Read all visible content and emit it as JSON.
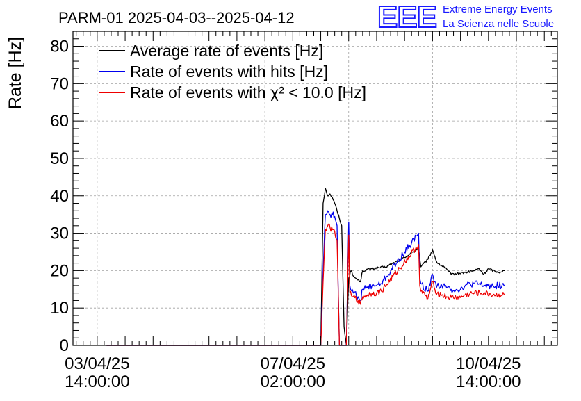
{
  "chart_data": {
    "type": "line",
    "title": "PARM-01 2025-04-03--2025-04-12",
    "ylabel": "Rate [Hz]",
    "xlabel": "",
    "ylim": [
      0,
      84
    ],
    "y_ticks": [
      0,
      10,
      20,
      30,
      40,
      50,
      60,
      70,
      80
    ],
    "xlim_hours_from_start": [
      -10.4,
      197.6
    ],
    "x_ticks": [
      {
        "date": "03/04/25",
        "time": "14:00:00",
        "hour": 0
      },
      {
        "date": "07/04/25",
        "time": "02:00:00",
        "hour": 84
      },
      {
        "date": "10/04/25",
        "time": "14:00:00",
        "hour": 168
      }
    ],
    "grid": true,
    "legend_position": "top-left",
    "logo": {
      "mark": "EEE",
      "line1": "Extreme Energy Events",
      "line2": "La Scienza nelle Scuole",
      "color": "#1a1aff"
    },
    "series": [
      {
        "name": "Average rate of events [Hz]",
        "color": "#000000",
        "points": [
          [
            4,
            0
          ],
          [
            92,
            0
          ],
          [
            96,
            0
          ],
          [
            97,
            38
          ],
          [
            98,
            42
          ],
          [
            99,
            40
          ],
          [
            100,
            40.5
          ],
          [
            101,
            39.5
          ],
          [
            102,
            38
          ],
          [
            103,
            36
          ],
          [
            105,
            32
          ],
          [
            106,
            5
          ],
          [
            107,
            0
          ],
          [
            108,
            18
          ],
          [
            109,
            20
          ],
          [
            110,
            18.5
          ],
          [
            112,
            17.5
          ],
          [
            113,
            17
          ],
          [
            114,
            20
          ],
          [
            118,
            20.5
          ],
          [
            124,
            21
          ],
          [
            132,
            23.5
          ],
          [
            138,
            26
          ],
          [
            139,
            21
          ],
          [
            142,
            23
          ],
          [
            144,
            25.5
          ],
          [
            146,
            22
          ],
          [
            149,
            21
          ],
          [
            152,
            19
          ],
          [
            158,
            19.5
          ],
          [
            162,
            20
          ],
          [
            164,
            20.5
          ],
          [
            166,
            19
          ],
          [
            168,
            20.5
          ],
          [
            172,
            19.5
          ],
          [
            175,
            20
          ]
        ],
        "noise": 0.3
      },
      {
        "name": "Rate of events with hits [Hz]",
        "color": "#0000ee",
        "points": [
          [
            4,
            0
          ],
          [
            95,
            0
          ],
          [
            96,
            0
          ],
          [
            97,
            20
          ],
          [
            98,
            35
          ],
          [
            99,
            36
          ],
          [
            100,
            35
          ],
          [
            101,
            35
          ],
          [
            102,
            34.5
          ],
          [
            103,
            32
          ],
          [
            104,
            0
          ],
          [
            105,
            0
          ],
          [
            106,
            0
          ],
          [
            107,
            0
          ],
          [
            108,
            33
          ],
          [
            108.5,
            16
          ],
          [
            109.5,
            15
          ],
          [
            110,
            14
          ],
          [
            112,
            13
          ],
          [
            113,
            12
          ],
          [
            114,
            15
          ],
          [
            116,
            15.5
          ],
          [
            118,
            16
          ],
          [
            120,
            16
          ],
          [
            122,
            16.5
          ],
          [
            138,
            30
          ],
          [
            138.5,
            18
          ],
          [
            139,
            16.5
          ],
          [
            142,
            14.5
          ],
          [
            144,
            19
          ],
          [
            145,
            17
          ],
          [
            146,
            16
          ],
          [
            148,
            16
          ],
          [
            150,
            15.5
          ],
          [
            152,
            15
          ],
          [
            156,
            15
          ],
          [
            158,
            16
          ],
          [
            162,
            16.5
          ],
          [
            166,
            16
          ],
          [
            170,
            16
          ],
          [
            175,
            16
          ]
        ],
        "noise": 0.9
      },
      {
        "name": "Rate of events with χ² < 10.0 [Hz]",
        "color": "#ee0000",
        "points": [
          [
            4,
            0
          ],
          [
            95,
            0
          ],
          [
            96,
            0
          ],
          [
            97,
            17
          ],
          [
            98,
            31
          ],
          [
            99,
            32
          ],
          [
            100,
            31.5
          ],
          [
            101,
            31
          ],
          [
            102,
            30.5
          ],
          [
            103,
            28
          ],
          [
            104,
            0
          ],
          [
            105,
            0
          ],
          [
            106,
            0
          ],
          [
            107,
            0
          ],
          [
            108,
            29.5
          ],
          [
            108.5,
            14
          ],
          [
            109.5,
            13
          ],
          [
            110,
            13
          ],
          [
            112,
            12
          ],
          [
            113,
            11
          ],
          [
            114,
            13
          ],
          [
            116,
            13.5
          ],
          [
            118,
            14
          ],
          [
            120,
            14
          ],
          [
            122,
            14.5
          ],
          [
            138,
            27
          ],
          [
            138.5,
            16
          ],
          [
            139,
            14.5
          ],
          [
            142,
            12.5
          ],
          [
            144,
            17
          ],
          [
            145,
            15
          ],
          [
            146,
            14
          ],
          [
            148,
            13.5
          ],
          [
            150,
            13
          ],
          [
            152,
            12.8
          ],
          [
            156,
            12.8
          ],
          [
            158,
            13.5
          ],
          [
            162,
            14
          ],
          [
            166,
            14
          ],
          [
            170,
            13.5
          ],
          [
            175,
            13.5
          ]
        ],
        "noise": 0.8
      }
    ]
  }
}
